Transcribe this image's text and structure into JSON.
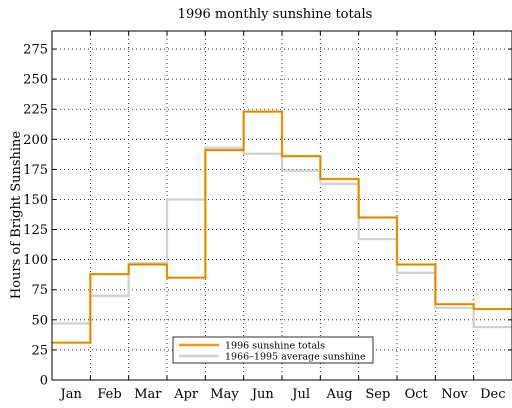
{
  "chart_data": {
    "type": "line",
    "step": true,
    "title": "1996 monthly sunshine totals",
    "xlabel": "",
    "ylabel": "Hours of Bright Sunshine",
    "categories": [
      "Jan",
      "Feb",
      "Mar",
      "Apr",
      "May",
      "Jun",
      "Jul",
      "Aug",
      "Sep",
      "Oct",
      "Nov",
      "Dec"
    ],
    "ylim": [
      0,
      290
    ],
    "yticks": [
      0,
      25,
      50,
      75,
      100,
      125,
      150,
      175,
      200,
      225,
      250,
      275
    ],
    "grid": true,
    "legend": "bottom-center",
    "series": [
      {
        "name": "1996 sunshine totals",
        "color": "#f59a00",
        "values": [
          31,
          88,
          96,
          85,
          191,
          223,
          186,
          167,
          135,
          96,
          63,
          59
        ]
      },
      {
        "name": "1966–1995 average sunshine",
        "color": "#d0d0d0",
        "values": [
          47,
          70,
          97,
          150,
          193,
          188,
          174,
          163,
          117,
          89,
          60,
          44
        ]
      }
    ]
  }
}
